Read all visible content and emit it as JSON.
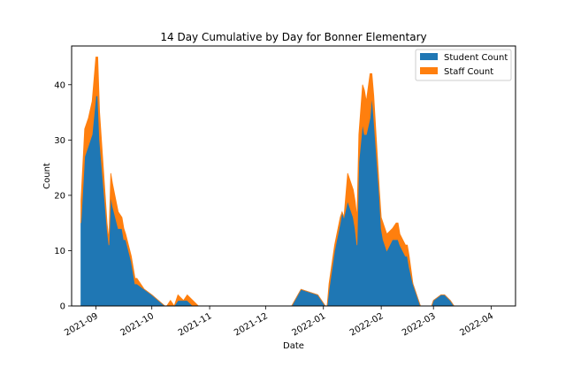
{
  "chart_data": {
    "type": "area",
    "stacked": true,
    "title": "14 Day Cumulative by Day for Bonner Elementary",
    "xlabel": "Date",
    "ylabel": "Count",
    "xlim": [
      "2021-08-19",
      "2022-04-14"
    ],
    "ylim": [
      0,
      47
    ],
    "x_ticks": [
      "2021-09-01",
      "2021-10-01",
      "2021-11-01",
      "2021-12-01",
      "2022-01-01",
      "2022-02-01",
      "2022-03-01",
      "2022-04-01"
    ],
    "x_tick_labels": [
      "2021-09",
      "2021-10",
      "2021-11",
      "2021-12",
      "2022-01",
      "2022-02",
      "2022-03",
      "2022-04"
    ],
    "y_ticks": [
      0,
      10,
      20,
      30,
      40
    ],
    "grid": false,
    "legend_position": "top-right",
    "colors": {
      "student": "#1f77b4",
      "staff": "#ff7f0e"
    },
    "x": [
      "2021-08-24",
      "2021-08-26",
      "2021-08-28",
      "2021-08-30",
      "2021-09-01",
      "2021-09-02",
      "2021-09-03",
      "2021-09-07",
      "2021-09-08",
      "2021-09-09",
      "2021-09-10",
      "2021-09-13",
      "2021-09-15",
      "2021-09-16",
      "2021-09-17",
      "2021-09-20",
      "2021-09-22",
      "2021-09-23",
      "2021-09-27",
      "2021-10-01",
      "2021-10-08",
      "2021-10-09",
      "2021-10-11",
      "2021-10-13",
      "2021-10-15",
      "2021-10-18",
      "2021-10-20",
      "2021-10-23",
      "2021-10-26",
      "2021-11-05",
      "2021-12-09",
      "2021-12-15",
      "2021-12-20",
      "2021-12-29",
      "2022-01-02",
      "2022-01-03",
      "2022-01-04",
      "2022-01-07",
      "2022-01-10",
      "2022-01-11",
      "2022-01-12",
      "2022-01-14",
      "2022-01-17",
      "2022-01-18",
      "2022-01-19",
      "2022-01-20",
      "2022-01-22",
      "2022-01-23",
      "2022-01-24",
      "2022-01-26",
      "2022-01-27",
      "2022-01-28",
      "2022-01-31",
      "2022-02-01",
      "2022-02-02",
      "2022-02-04",
      "2022-02-07",
      "2022-02-09",
      "2022-02-10",
      "2022-02-11",
      "2022-02-14",
      "2022-02-15",
      "2022-02-16",
      "2022-02-18",
      "2022-02-22",
      "2022-02-28",
      "2022-03-01",
      "2022-03-05",
      "2022-03-07",
      "2022-03-10",
      "2022-03-12",
      "2022-03-15",
      "2022-04-14"
    ],
    "series": [
      {
        "name": "Student Count",
        "values": [
          15,
          27,
          29,
          31,
          38,
          38,
          30,
          14,
          11,
          20,
          18,
          14,
          14,
          12,
          12,
          8,
          4,
          4,
          3,
          2,
          0,
          0,
          0,
          0,
          1,
          1,
          1,
          0,
          0,
          0,
          0,
          0,
          3,
          2,
          0,
          0,
          3,
          10,
          15,
          17,
          16,
          19,
          16,
          14,
          11,
          26,
          33,
          31,
          31,
          34,
          38,
          34,
          20,
          14,
          12,
          10,
          12,
          12,
          12,
          11,
          9,
          9,
          7,
          4,
          0,
          0,
          1,
          2,
          2,
          1,
          0,
          0,
          0
        ]
      },
      {
        "name": "Staff Count",
        "values": [
          4,
          5,
          5,
          6,
          7,
          7,
          5,
          1,
          1,
          4,
          4,
          3,
          2,
          2,
          1,
          1,
          1,
          1,
          0,
          0,
          0,
          0,
          1,
          0,
          1,
          0,
          1,
          1,
          0,
          0,
          0,
          0,
          0,
          0,
          0,
          0,
          1,
          1,
          1,
          0,
          0,
          5,
          5,
          5,
          5,
          5,
          7,
          8,
          6,
          8,
          4,
          4,
          1,
          2,
          3,
          3,
          2,
          3,
          3,
          2,
          2,
          2,
          2,
          0,
          0,
          0,
          0,
          0,
          0,
          0,
          0,
          0,
          0
        ]
      }
    ]
  }
}
